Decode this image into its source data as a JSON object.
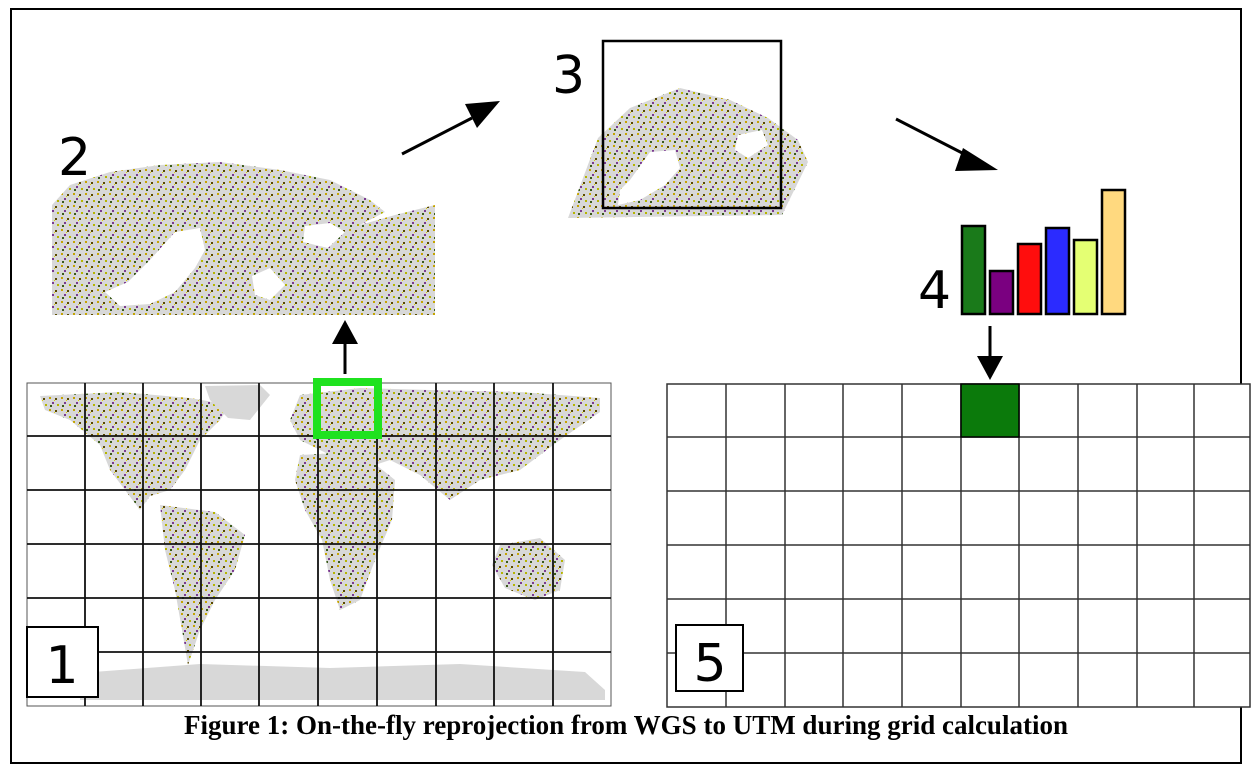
{
  "steps": {
    "world_grid": "1",
    "wgs_tile": "2",
    "utm_tile": "3",
    "histogram": "4",
    "utm_grid": "5"
  },
  "histogram_bars": [
    {
      "value": 88,
      "color": "#1a7a1a"
    },
    {
      "value": 43,
      "color": "#7a0080"
    },
    {
      "value": 70,
      "color": "#ff0d0d"
    },
    {
      "value": 86,
      "color": "#2b2bff"
    },
    {
      "value": 74,
      "color": "#e4ff73"
    },
    {
      "value": 124,
      "color": "#ffd97f"
    }
  ],
  "colors": {
    "selected_tile": "#1fe21f",
    "filled_cell": "#0b7a0b",
    "land_gray": "#d8d8d8"
  },
  "caption": "Figure 1: On-the-fly reprojection from WGS to UTM during grid calculation"
}
